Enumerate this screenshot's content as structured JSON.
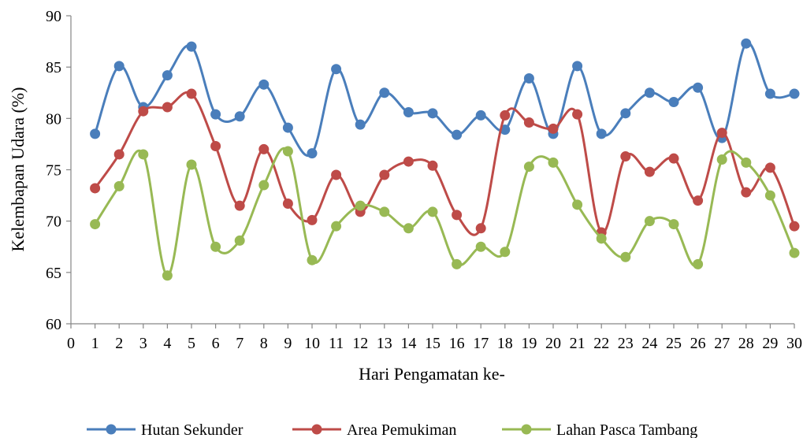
{
  "chart_data": {
    "type": "line",
    "xlabel": "Hari Pengamatan ke-",
    "ylabel": "Kelembapan Udara (%)",
    "xlim": [
      0,
      30
    ],
    "ylim": [
      60,
      90
    ],
    "x_ticks": [
      "0",
      "1",
      "2",
      "3",
      "4",
      "5",
      "6",
      "7",
      "8",
      "9",
      "10",
      "11",
      "12",
      "13",
      "14",
      "15",
      "16",
      "17",
      "18",
      "19",
      "20",
      "21",
      "22",
      "23",
      "24",
      "25",
      "26",
      "27",
      "28",
      "29",
      "30"
    ],
    "y_ticks": [
      "60",
      "65",
      "70",
      "75",
      "80",
      "85",
      "90"
    ],
    "grid": false,
    "legend_position": "bottom",
    "x": [
      1,
      2,
      3,
      4,
      5,
      6,
      7,
      8,
      9,
      10,
      11,
      12,
      13,
      14,
      15,
      16,
      17,
      18,
      19,
      20,
      21,
      22,
      23,
      24,
      25,
      26,
      27,
      28,
      29,
      30
    ],
    "series": [
      {
        "name": "Hutan Sekunder",
        "color": "#4A7EBB",
        "values": [
          78.5,
          85.1,
          81.1,
          84.2,
          87.0,
          80.4,
          80.2,
          83.3,
          79.1,
          76.6,
          84.8,
          79.4,
          82.5,
          80.6,
          80.5,
          78.4,
          80.3,
          78.9,
          83.9,
          78.5,
          85.1,
          78.5,
          80.5,
          82.5,
          81.6,
          83.0,
          78.1,
          87.3,
          82.4,
          82.4
        ]
      },
      {
        "name": "Area Pemukiman",
        "color": "#BE4B48",
        "values": [
          73.2,
          76.5,
          80.7,
          81.1,
          82.4,
          77.3,
          71.5,
          77.0,
          71.7,
          70.1,
          74.5,
          70.9,
          74.5,
          75.8,
          75.4,
          70.6,
          69.3,
          80.3,
          79.6,
          79.0,
          80.4,
          68.9,
          76.3,
          74.8,
          76.1,
          72.0,
          78.6,
          72.8,
          75.2,
          69.5
        ]
      },
      {
        "name": "Lahan Pasca Tambang",
        "color": "#98B954",
        "values": [
          69.7,
          73.4,
          76.5,
          64.7,
          75.5,
          67.5,
          68.1,
          73.5,
          76.8,
          66.2,
          69.5,
          71.5,
          70.9,
          69.3,
          70.9,
          65.8,
          67.5,
          67.0,
          75.3,
          75.7,
          71.6,
          68.3,
          66.5,
          70.0,
          69.7,
          65.8,
          76.0,
          75.7,
          72.5,
          66.9
        ]
      }
    ]
  }
}
